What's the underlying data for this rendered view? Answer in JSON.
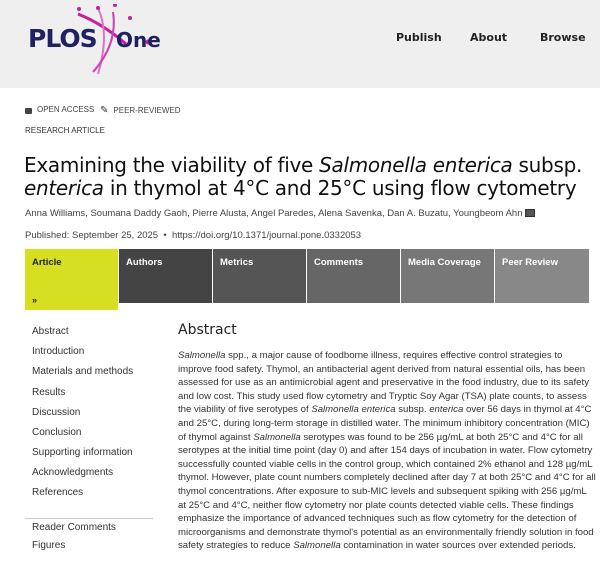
{
  "header": {
    "logo_text": "PLOS",
    "logo_suffix": "One",
    "nav": [
      "Publish",
      "About",
      "Browse"
    ],
    "brand_color": "#c41fa0"
  },
  "badges": {
    "open_access": "OPEN ACCESS",
    "peer_reviewed": "PEER-REVIEWED"
  },
  "article_type": "RESEARCH ARTICLE",
  "title": {
    "parts": [
      "Examining the viability of five ",
      "Salmonella enterica",
      " subsp. ",
      "enterica",
      " in thymol at 4°C and 25°C using flow cytometry"
    ]
  },
  "authors": "Anna Williams,  Soumana Daddy Gaoh,  Pierre Alusta,  Angel Paredes,  Alena Savenka,  Dan A. Buzatu,  Youngbeom Ahn",
  "published": "Published: September 25, 2025",
  "doi": "https://doi.org/10.1371/journal.pone.0332053",
  "tabs": [
    "Article",
    "Authors",
    "Metrics",
    "Comments",
    "Media Coverage",
    "Peer Review"
  ],
  "tab_colors": [
    "#d6df22",
    "#444444",
    "#555555",
    "#666666",
    "#777777",
    "#888888"
  ],
  "sidebar": {
    "items": [
      "Abstract",
      "Introduction",
      "Materials and methods",
      "Results",
      "Discussion",
      "Conclusion",
      "Supporting information",
      "Acknowledgments",
      "References"
    ],
    "extra": [
      "Reader Comments",
      "Figures"
    ]
  },
  "abstract": {
    "heading": "Abstract",
    "segments": [
      "Salmonella",
      " spp., a major cause of foodborne illness, requires effective control strategies to improve food safety. Thymol, an antibacterial agent derived from natural essential oils, has been assessed for use as an antimicrobial agent and preservative in the food industry, due to its safety and low cost. This study used flow cytometry and Tryptic Soy Agar (TSA) plate counts, to assess the viability of five serotypes of ",
      "Salmonella enterica",
      " subsp. ",
      "enterica",
      " over 56 days in thymol at 4°C and 25°C, during long-term storage in distilled water. The minimum inhibitory concentration (MIC) of thymol against ",
      "Salmonella",
      " serotypes was found to be 256 µg/mL at both 25°C and 4°C for all serotypes at the initial time point (day 0) and after 154 days of incubation in water. Flow cytometry successfully counted viable cells in the control group, which contained 2% ethanol and 128 µg/mL thymol. However, plate count numbers completely declined after day 7 at both 25°C and 4°C for all thymol concentrations. After exposure to sub-MIC levels and subsequent spiking with 256 µg/mL at 25°C and 4°C, neither flow cytometry nor plate counts detected viable cells. These findings emphasize the importance of advanced techniques such as flow cytometry for the detection of microorganisms and demonstrate thymol's potential as an environmentally friendly solution in food safety strategies to reduce ",
      "Salmonella",
      " contamination in water sources over extended periods."
    ]
  }
}
